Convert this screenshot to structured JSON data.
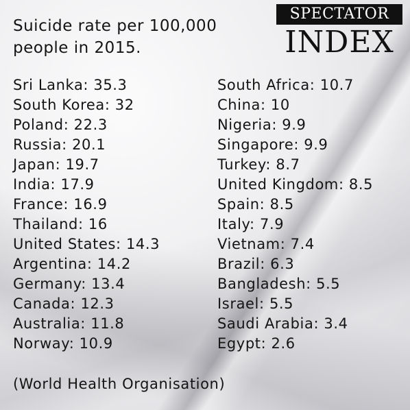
{
  "title": "Suicide rate per 100,000 people in 2015.",
  "brand": {
    "top": "SPECTATOR",
    "bottom": "INDEX"
  },
  "left_column": [
    "Sri Lanka: 35.3",
    "South Korea: 32",
    "Poland: 22.3",
    "Russia: 20.1",
    "Japan: 19.7",
    "India: 17.9",
    "France: 16.9",
    "Thailand: 16",
    "United States: 14.3",
    "Argentina: 14.2",
    "Germany: 13.4",
    "Canada: 12.3",
    "Australia: 11.8",
    "Norway: 10.9"
  ],
  "right_column": [
    "South Africa: 10.7",
    "China: 10",
    "Nigeria: 9.9",
    "Singapore: 9.9",
    "Turkey: 8.7",
    "United Kingdom: 8.5",
    "Spain: 8.5",
    "Italy: 7.9",
    "Vietnam: 7.4",
    "Brazil: 6.3",
    "Bangladesh: 5.5",
    "Israel: 5.5",
    "Saudi Arabia: 3.4",
    "Egypt: 2.6"
  ],
  "source": "(World Health Organisation)"
}
